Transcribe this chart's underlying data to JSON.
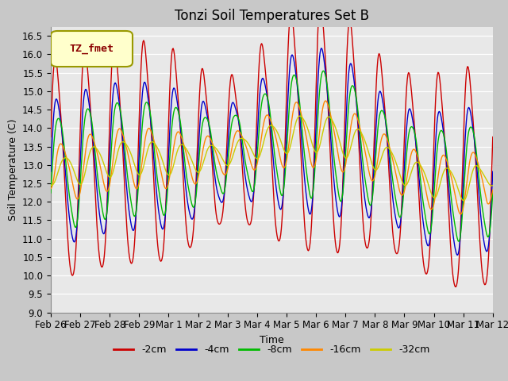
{
  "title": "Tonzi Soil Temperatures Set B",
  "xlabel": "Time",
  "ylabel": "Soil Temperature (C)",
  "ylim": [
    9.0,
    16.75
  ],
  "yticks": [
    9.0,
    9.5,
    10.0,
    10.5,
    11.0,
    11.5,
    12.0,
    12.5,
    13.0,
    13.5,
    14.0,
    14.5,
    15.0,
    15.5,
    16.0,
    16.5
  ],
  "x_labels": [
    "Feb 26",
    "Feb 27",
    "Feb 28",
    "Feb 29",
    "Mar 1",
    "Mar 2",
    "Mar 3",
    "Mar 4",
    "Mar 5",
    "Mar 6",
    "Mar 7",
    "Mar 8",
    "Mar 9",
    "Mar 10",
    "Mar 11",
    "Mar 12"
  ],
  "series_labels": [
    "-2cm",
    "-4cm",
    "-8cm",
    "-16cm",
    "-32cm"
  ],
  "series_colors": [
    "#cc0000",
    "#0000cc",
    "#00bb00",
    "#ff8800",
    "#cccc00"
  ],
  "legend_label": "TZ_fmet",
  "legend_bg": "#ffffcc",
  "legend_border": "#999900",
  "title_fontsize": 12,
  "label_fontsize": 9,
  "tick_fontsize": 8.5
}
